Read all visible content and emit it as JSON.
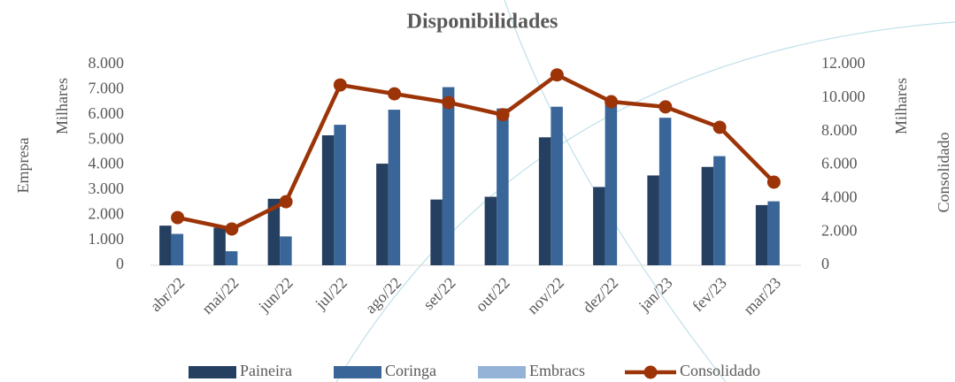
{
  "chart_data": {
    "type": "bar",
    "title": "Disponibilidades",
    "categories": [
      "abr/22",
      "mai/22",
      "jun/22",
      "jul/22",
      "ago/22",
      "set/22",
      "out/22",
      "nov/22",
      "dez/22",
      "jan/23",
      "fev/23",
      "mar/23"
    ],
    "series": [
      {
        "name": "Paineira",
        "color": "#243f60",
        "values": [
          1580,
          1500,
          2650,
          5180,
          4050,
          2620,
          2730,
          5100,
          3120,
          3580,
          3920,
          2400
        ]
      },
      {
        "name": "Coringa",
        "color": "#3a6598",
        "values": [
          1250,
          560,
          1150,
          5600,
          6200,
          7100,
          6250,
          6320,
          6600,
          5880,
          4350,
          2550
        ]
      },
      {
        "name": "Embracs",
        "color": "#95b3d7",
        "values": [
          0,
          0,
          0,
          0,
          0,
          0,
          0,
          0,
          0,
          0,
          0,
          0
        ]
      },
      {
        "name": "Consolidado",
        "color": "#9c3408",
        "type": "line",
        "axis": "y2",
        "values": [
          2850,
          2170,
          3800,
          10780,
          10250,
          9730,
          9000,
          11380,
          9780,
          9470,
          8250,
          4970
        ]
      }
    ],
    "y_label": "Empresa",
    "y_unit": "Milhares",
    "y2_label": "Consolidado",
    "y2_unit": "Milhares",
    "ylim": [
      0,
      8000
    ],
    "yticks": [
      0,
      {
        "value": 1000,
        "label": "1.000"
      },
      {
        "value": 2000,
        "label": "2.000"
      },
      {
        "value": 3000,
        "label": "3.000"
      },
      {
        "value": 4000,
        "label": "4.000"
      },
      {
        "value": 5000,
        "label": "5.000"
      },
      {
        "value": 6000,
        "label": "6.000"
      },
      {
        "value": 7000,
        "label": "7.000"
      },
      {
        "value": 8000,
        "label": "8.000"
      }
    ],
    "y2lim": [
      0,
      12000
    ],
    "y2ticks": [
      0,
      {
        "value": 2000,
        "label": "2.000"
      },
      {
        "value": 4000,
        "label": "4.000"
      },
      {
        "value": 6000,
        "label": "6.000"
      },
      {
        "value": 8000,
        "label": "8.000"
      },
      {
        "value": 10000,
        "label": "10.000"
      },
      {
        "value": 12000,
        "label": "12.000"
      }
    ],
    "legend": "bottom"
  }
}
